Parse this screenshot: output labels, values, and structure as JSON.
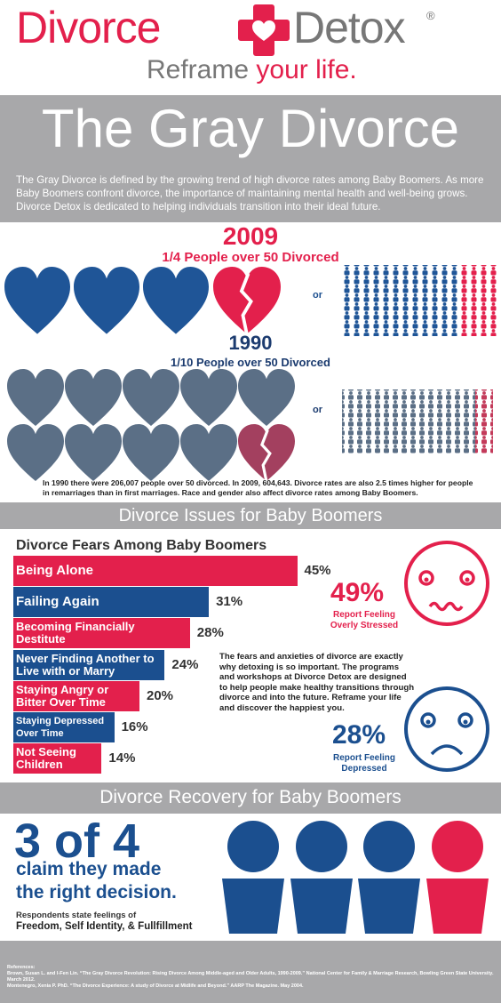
{
  "logo": {
    "name_1": "Divorce",
    "name_2": "Detox",
    "registered": "®",
    "tagline_1": "Reframe",
    "tagline_2": "your life."
  },
  "header": {
    "title": "The Gray Divorce",
    "intro": "The Gray Divorce is defined by the growing trend of high divorce rates among Baby Boomers. As more Baby Boomers confront divorce, the importance of maintaining mental health and well-being grows. Divorce Detox is dedicated to helping individuals transition into their ideal future."
  },
  "stats": [
    {
      "year": "2009",
      "caption": "1/4 People over 50 Divorced",
      "or": "or"
    },
    {
      "year": "1990",
      "caption": "1/10 People over 50 Divorced",
      "or": "or"
    }
  ],
  "stats_note": "In 1990 there were 206,007 people over 50 divorced. In 2009, 604,643. Divorce rates are also 2.5 times higher for people in remarriages than in first marriages. Race and gender also affect divorce rates among Baby Boomers.",
  "issues": {
    "heading": "Divorce Issues for Baby Boomers",
    "chart_title": "Divorce Fears Among Baby Boomers",
    "categories": [
      "Being Alone",
      "Failing Again",
      "Becoming Financially Destitute",
      "Never Finding Another to Live with or Marry",
      "Staying Angry or Bitter Over Time",
      "Staying Depressed Over Time",
      "Not Seeing Children"
    ],
    "values": [
      45,
      31,
      28,
      24,
      20,
      16,
      14
    ],
    "value_labels": [
      "45%",
      "31%",
      "28%",
      "24%",
      "20%",
      "16%",
      "14%"
    ],
    "colors": [
      "#e3204c",
      "#1b4f8f"
    ]
  },
  "stressed": {
    "percent": "49%",
    "caption_1": "Report Feeling",
    "caption_2": "Overly Stressed"
  },
  "paragraph": "The fears and anxieties of divorce are exactly why detoxing is so important. The programs and workshops at Divorce Detox are designed to help people make healthy transitions through divorce and into the future. Reframe your life and discover the happiest you.",
  "depressed": {
    "percent": "28%",
    "caption_1": "Report Feeling",
    "caption_2": "Depressed"
  },
  "recovery": {
    "heading": "Divorce Recovery for Baby Boomers",
    "big": "3 of 4",
    "claim_1": "claim they made",
    "claim_2": "the right decision.",
    "note": "Respondents state feelings of",
    "feelings": "Freedom, Self Identity, & Fullfillment"
  },
  "references": [
    "References:",
    "Brown, Susan L. and I-Fen Lin. “The Gray Divorce Revolution: Rising Divorce Among Middle-aged and Older Adults, 1990-2009.” National Center for Family & Marriage Research, Bowling Green State University. March 2012.",
    "Montenegro, Xenia P. PhD. “The Divorce Experience: A study of Divorce at Midlife and Beyond.” AARP The Magazine. May 2004."
  ]
}
